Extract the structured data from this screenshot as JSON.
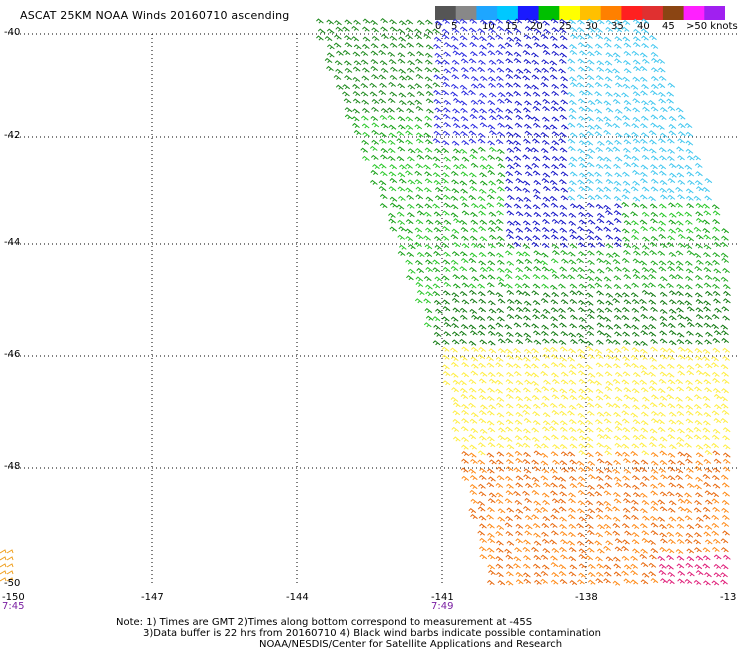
{
  "title": "ASCAT 25KM NOAA Winds 20160710 ascending",
  "colorbar": {
    "colors": [
      "#555555",
      "#888888",
      "#1ea6ff",
      "#00c8ff",
      "#1a1aff",
      "#00c000",
      "#ffff00",
      "#ffc000",
      "#ff8000",
      "#ff2020",
      "#e03030",
      "#8b4513",
      "#ff20ff",
      "#a020f0"
    ],
    "labels": [
      "0",
      "5",
      "10",
      "15",
      "20",
      "25",
      "30",
      "35",
      "40",
      "45",
      ">50 knots"
    ]
  },
  "axes": {
    "lat_labels": [
      "-40",
      "-42",
      "-44",
      "-46",
      "-48",
      "-50"
    ],
    "lon_labels": [
      "-150",
      "-147",
      "-144",
      "-141",
      "-138",
      "-13"
    ],
    "time_labels": [
      "7:45",
      "7:49"
    ]
  },
  "notes": {
    "line1": "Note: 1) Times are GMT 2)Times along bottom correspond to measurement at -45S",
    "line2": "3)Data buffer is 22 hrs from 20160710 4) Black wind barbs indicate possible contamination",
    "line3": "NOAA/NESDIS/Center for Satellite Applications and Research"
  }
}
